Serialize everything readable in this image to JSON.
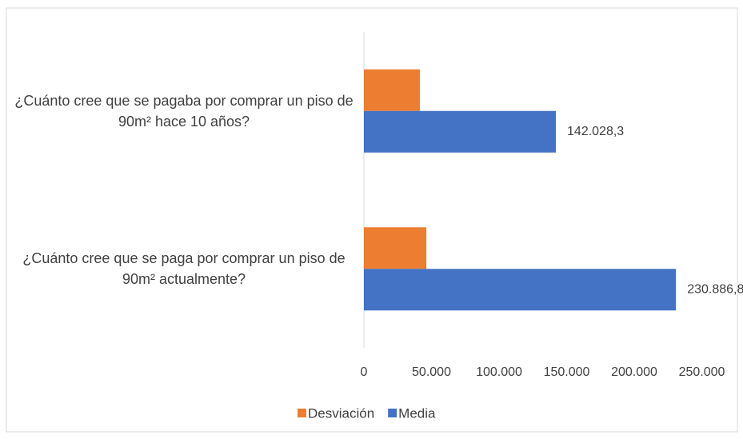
{
  "chart_data": {
    "type": "barh",
    "categories": [
      "¿Cuánto cree que se pagaba por comprar un piso de 90m² hace 10 años?",
      "¿Cuánto cree que se paga por comprar un piso de 90m² actualmente?"
    ],
    "series": [
      {
        "name": "Desviación",
        "color": "#ed7d31",
        "values": [
          41400,
          46200
        ]
      },
      {
        "name": "Media",
        "color": "#4472c4",
        "values": [
          142028.3,
          230886.8
        ],
        "value_labels": [
          "142.028,3",
          "230.886,8"
        ]
      }
    ],
    "xlim": [
      0,
      250000
    ],
    "xticks": [
      0,
      {
        "value": 50000,
        "label": "50.000"
      },
      {
        "value": 100000,
        "label": "100.000"
      },
      {
        "value": 150000,
        "label": "150.000"
      },
      {
        "value": 200000,
        "label": "200.000"
      },
      {
        "value": 250000,
        "label": "250.000"
      }
    ],
    "legend": "bottom"
  }
}
